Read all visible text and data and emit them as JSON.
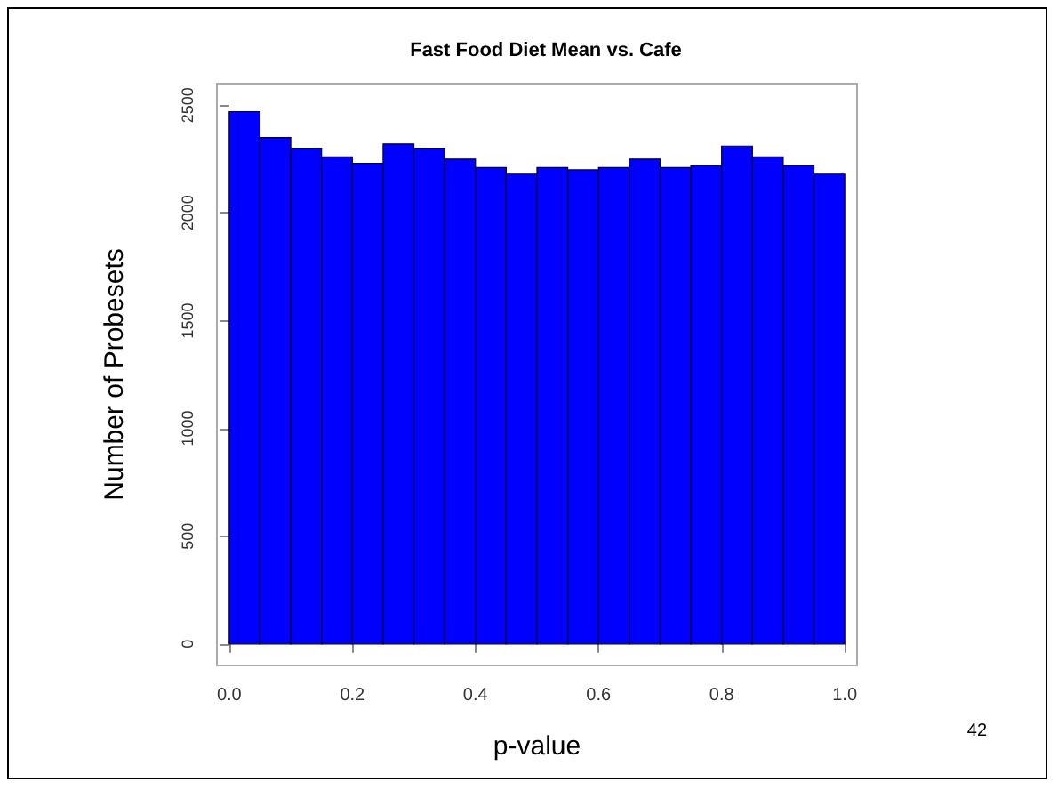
{
  "chart_data": {
    "type": "histogram",
    "title": "Fast Food Diet Mean vs. Cafe",
    "xlabel": "p-value",
    "ylabel": "Number of Probesets",
    "bins": [
      0,
      0.05,
      0.1,
      0.15,
      0.2,
      0.25,
      0.3,
      0.35,
      0.4,
      0.45,
      0.5,
      0.55,
      0.6,
      0.65,
      0.7,
      0.75,
      0.8,
      0.85,
      0.9,
      0.95,
      1
    ],
    "values": [
      2470,
      2350,
      2300,
      2260,
      2230,
      2320,
      2300,
      2250,
      2210,
      2180,
      2210,
      2200,
      2210,
      2250,
      2210,
      2220,
      2310,
      2260,
      2220,
      2180
    ],
    "color": "#0000ff",
    "xlim": [
      -0.02,
      1.02
    ],
    "xticks": [
      {
        "value": 0,
        "label": "0.0"
      },
      {
        "value": 0.2,
        "label": "0.2"
      },
      {
        "value": 0.4,
        "label": "0.4"
      },
      {
        "value": 0.6,
        "label": "0.6"
      },
      {
        "value": 0.8,
        "label": "0.8"
      },
      {
        "value": 1,
        "label": "1.0"
      }
    ],
    "ylim": [
      -100,
      2600
    ],
    "yticks": [
      0,
      500,
      1000,
      1500,
      2000,
      2500
    ],
    "annotations": [
      "42"
    ],
    "grid": false
  }
}
